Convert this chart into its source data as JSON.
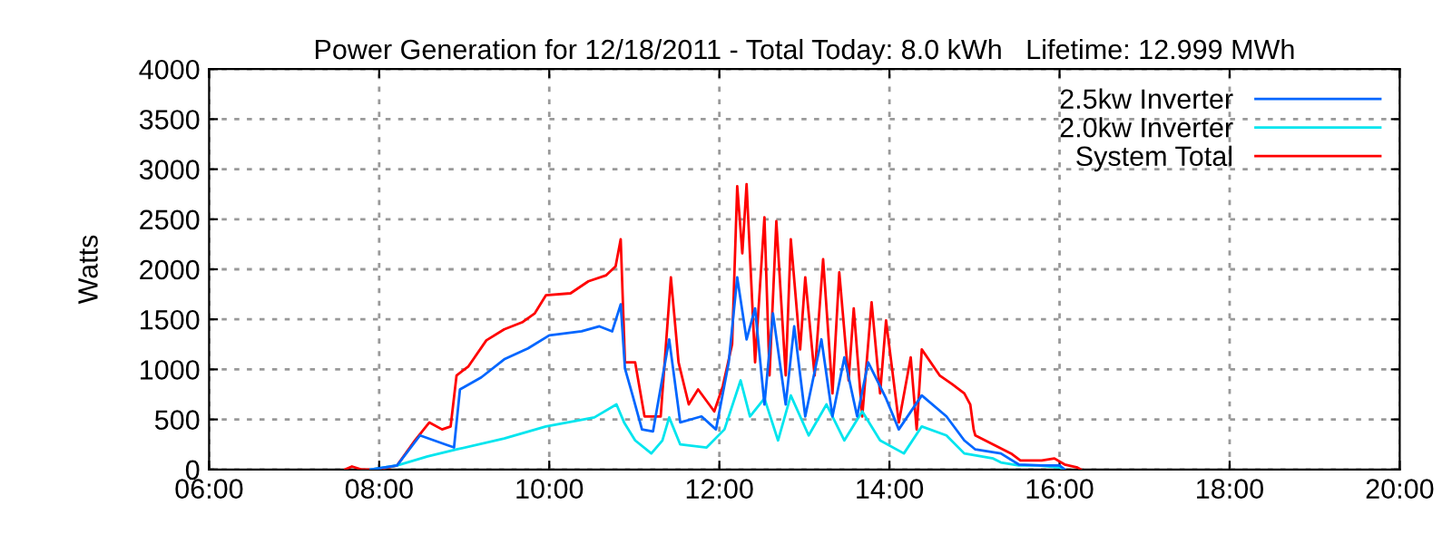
{
  "chart_data": {
    "type": "line",
    "title": "Power Generation for 12/18/2011 - Total Today: 8.0 kWh   Lifetime: 12.999 MWh",
    "ylabel": "Watts",
    "xlim": [
      6,
      20
    ],
    "xticks": [
      {
        "value": 6,
        "label": "06:00"
      },
      {
        "value": 8,
        "label": "08:00"
      },
      {
        "value": 10,
        "label": "10:00"
      },
      {
        "value": 12,
        "label": "12:00"
      },
      {
        "value": 14,
        "label": "14:00"
      },
      {
        "value": 16,
        "label": "16:00"
      },
      {
        "value": 18,
        "label": "18:00"
      },
      {
        "value": 20,
        "label": "20:00"
      }
    ],
    "ylim": [
      0,
      4000
    ],
    "yticks": [
      0,
      500,
      1000,
      1500,
      2000,
      2500,
      3000,
      3500,
      4000
    ],
    "grid": true,
    "legend": "top right",
    "marker": "none",
    "line_style": "solid",
    "series": [
      {
        "name": "2.5kw Inverter",
        "color": "#0066ff",
        "x": [
          7.9,
          8.21,
          8.48,
          8.78,
          8.88,
          8.95,
          9.2,
          9.47,
          9.75,
          10.0,
          10.38,
          10.59,
          10.74,
          10.84,
          10.89,
          10.98,
          11.09,
          11.22,
          11.41,
          11.54,
          11.79,
          11.96,
          12.11,
          12.21,
          12.32,
          12.42,
          12.53,
          12.63,
          12.78,
          12.88,
          13.01,
          13.2,
          13.33,
          13.47,
          13.62,
          13.75,
          13.96,
          14.11,
          14.38,
          14.67,
          14.88,
          15.01,
          15.31,
          15.52,
          15.79,
          16.0,
          16.06
        ],
        "values": [
          0,
          40,
          340,
          250,
          220,
          800,
          920,
          1100,
          1210,
          1340,
          1380,
          1430,
          1380,
          1650,
          1010,
          740,
          400,
          380,
          1300,
          470,
          530,
          400,
          1070,
          1920,
          1300,
          1610,
          650,
          1560,
          650,
          1430,
          530,
          1300,
          530,
          1120,
          530,
          1070,
          710,
          400,
          740,
          530,
          290,
          200,
          160,
          50,
          40,
          40,
          0
        ]
      },
      {
        "name": "2.0kw Inverter",
        "color": "#00e5ee",
        "x": [
          7.9,
          8.21,
          8.57,
          8.91,
          9.47,
          9.96,
          10.53,
          10.79,
          10.88,
          11.01,
          11.2,
          11.33,
          11.41,
          11.54,
          11.85,
          12.06,
          12.25,
          12.36,
          12.53,
          12.69,
          12.84,
          13.05,
          13.26,
          13.47,
          13.68,
          13.89,
          14.17,
          14.38,
          14.67,
          14.88,
          15.22,
          15.31,
          15.52,
          15.75,
          16.0,
          16.04
        ],
        "values": [
          0,
          40,
          130,
          200,
          310,
          430,
          520,
          650,
          470,
          290,
          160,
          290,
          520,
          250,
          220,
          400,
          890,
          530,
          710,
          290,
          740,
          340,
          650,
          290,
          580,
          290,
          160,
          430,
          340,
          160,
          110,
          70,
          40,
          40,
          20,
          0
        ]
      },
      {
        "name": "System Total",
        "color": "#ff0000",
        "x": [
          7.6,
          7.68,
          7.79,
          8.0,
          8.21,
          8.42,
          8.59,
          8.74,
          8.84,
          8.91,
          9.05,
          9.26,
          9.47,
          9.68,
          9.83,
          9.96,
          10.25,
          10.46,
          10.67,
          10.78,
          10.84,
          10.89,
          11.01,
          11.12,
          11.31,
          11.43,
          11.52,
          11.64,
          11.75,
          11.94,
          12.04,
          12.15,
          12.21,
          12.27,
          12.32,
          12.42,
          12.53,
          12.59,
          12.67,
          12.78,
          12.84,
          12.95,
          13.01,
          13.12,
          13.22,
          13.33,
          13.41,
          13.52,
          13.58,
          13.68,
          13.79,
          13.89,
          13.96,
          14.11,
          14.25,
          14.32,
          14.38,
          14.59,
          14.74,
          14.88,
          14.95,
          14.99,
          15.01,
          15.22,
          15.43,
          15.54,
          15.79,
          15.94,
          16.06,
          16.21,
          16.25
        ],
        "values": [
          0,
          30,
          0,
          0,
          40,
          290,
          470,
          400,
          430,
          940,
          1030,
          1290,
          1400,
          1470,
          1560,
          1740,
          1760,
          1880,
          1940,
          2030,
          2300,
          1070,
          1070,
          530,
          530,
          1920,
          1070,
          650,
          800,
          580,
          830,
          1250,
          2830,
          2160,
          2850,
          1070,
          2520,
          940,
          2480,
          940,
          2300,
          1200,
          1920,
          940,
          2100,
          760,
          1970,
          890,
          1610,
          530,
          1670,
          760,
          1490,
          470,
          1120,
          400,
          1200,
          940,
          850,
          760,
          650,
          400,
          340,
          250,
          160,
          90,
          90,
          110,
          50,
          20,
          0
        ]
      }
    ]
  }
}
